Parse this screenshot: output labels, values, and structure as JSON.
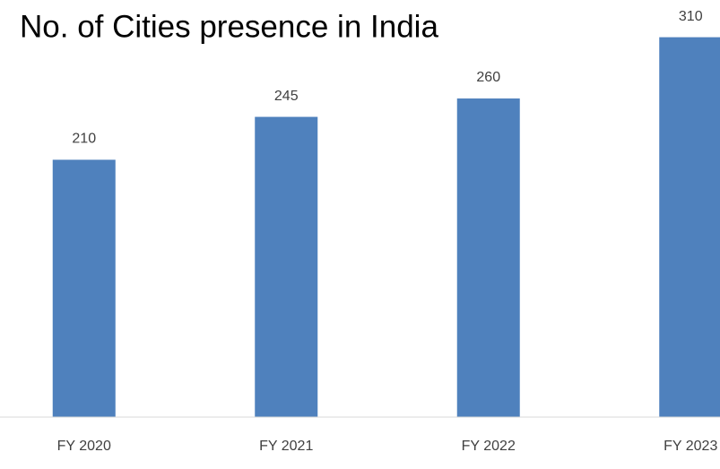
{
  "chart_data": {
    "type": "bar",
    "title": "No. of Cities presence in India",
    "categories": [
      "FY 2020",
      "FY 2021",
      "FY 2022",
      "FY 2023"
    ],
    "values": [
      210,
      245,
      260,
      310
    ],
    "color": "#4f81bd",
    "ylim": [
      0,
      340
    ]
  }
}
